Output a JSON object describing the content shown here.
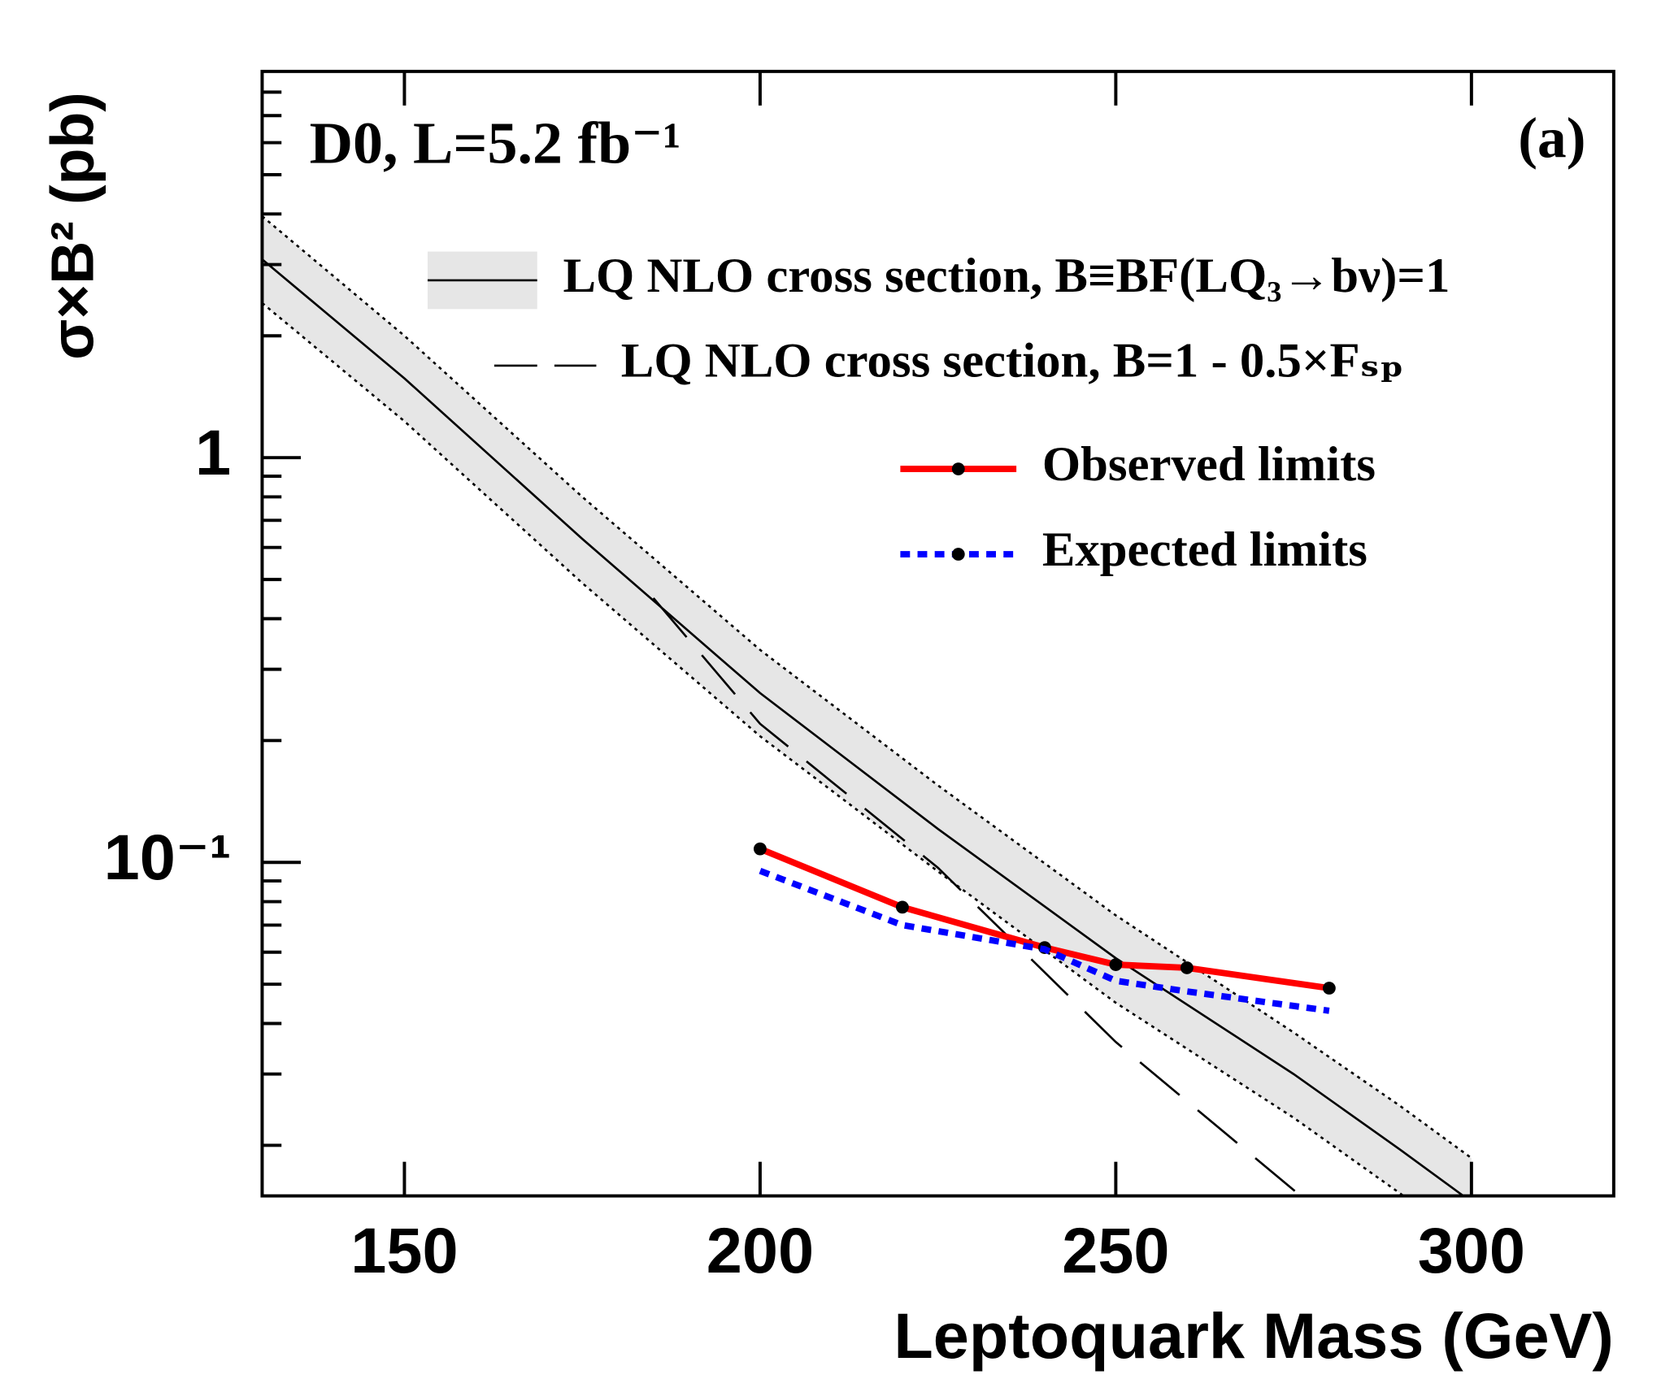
{
  "chart_data": {
    "type": "line",
    "annotations": [
      "D0, L=5.2 fb⁻¹",
      "(a)"
    ],
    "xlabel": "Leptoquark Mass (GeV)",
    "ylabel": "σ×B² (pb)",
    "xlim": [
      130,
      320
    ],
    "xticks": [
      150,
      200,
      250,
      300
    ],
    "ylim": [
      0.015,
      9
    ],
    "yscale": "log",
    "yticks": [
      {
        "value": 0.1,
        "label": "10⁻¹"
      },
      1
    ],
    "yminorticks": [
      0.02,
      0.03,
      0.04,
      0.05,
      0.06,
      0.07,
      0.08,
      0.09,
      0.2,
      0.3,
      0.4,
      0.5,
      0.6,
      0.7,
      0.8,
      0.9,
      2,
      3,
      4,
      5,
      6,
      7,
      8
    ],
    "band_color": "#e6e6e6",
    "series": [
      {
        "name": "LQ NLO cross section, B≡BF(LQ₃→bν)=1",
        "color": "#000000",
        "style": "solid",
        "x": [
          130,
          150,
          175,
          200,
          225,
          250,
          275,
          290,
          300
        ],
        "values": [
          3.09,
          1.57,
          0.63,
          0.262,
          0.121,
          0.058,
          0.03,
          0.0195,
          0.0145
        ],
        "band_upper": [
          3.95,
          2.0,
          0.8,
          0.335,
          0.155,
          0.074,
          0.038,
          0.025,
          0.0186
        ],
        "band_lower": [
          2.41,
          1.23,
          0.49,
          0.205,
          0.095,
          0.045,
          0.0234,
          0.0152,
          0.0113
        ]
      },
      {
        "name": "LQ NLO cross section, B=1 - 0.5×Fₛₚ",
        "color": "#000000",
        "style": "dashed",
        "x": [
          185,
          200,
          225,
          250,
          276
        ],
        "values": [
          0.45,
          0.22,
          0.097,
          0.036,
          0.015
        ]
      },
      {
        "name": "Observed limits",
        "color": "#ff0000",
        "style": "solid",
        "markers": true,
        "x": [
          200,
          220,
          240,
          250,
          260,
          280
        ],
        "values": [
          0.108,
          0.0775,
          0.0616,
          0.0559,
          0.0549,
          0.0489
        ]
      },
      {
        "name": "Expected limits",
        "color": "#0000ff",
        "style": "dotted",
        "x": [
          200,
          220,
          240,
          250,
          260,
          280
        ],
        "values": [
          0.0953,
          0.07,
          0.061,
          0.051,
          0.048,
          0.043
        ]
      }
    ]
  }
}
